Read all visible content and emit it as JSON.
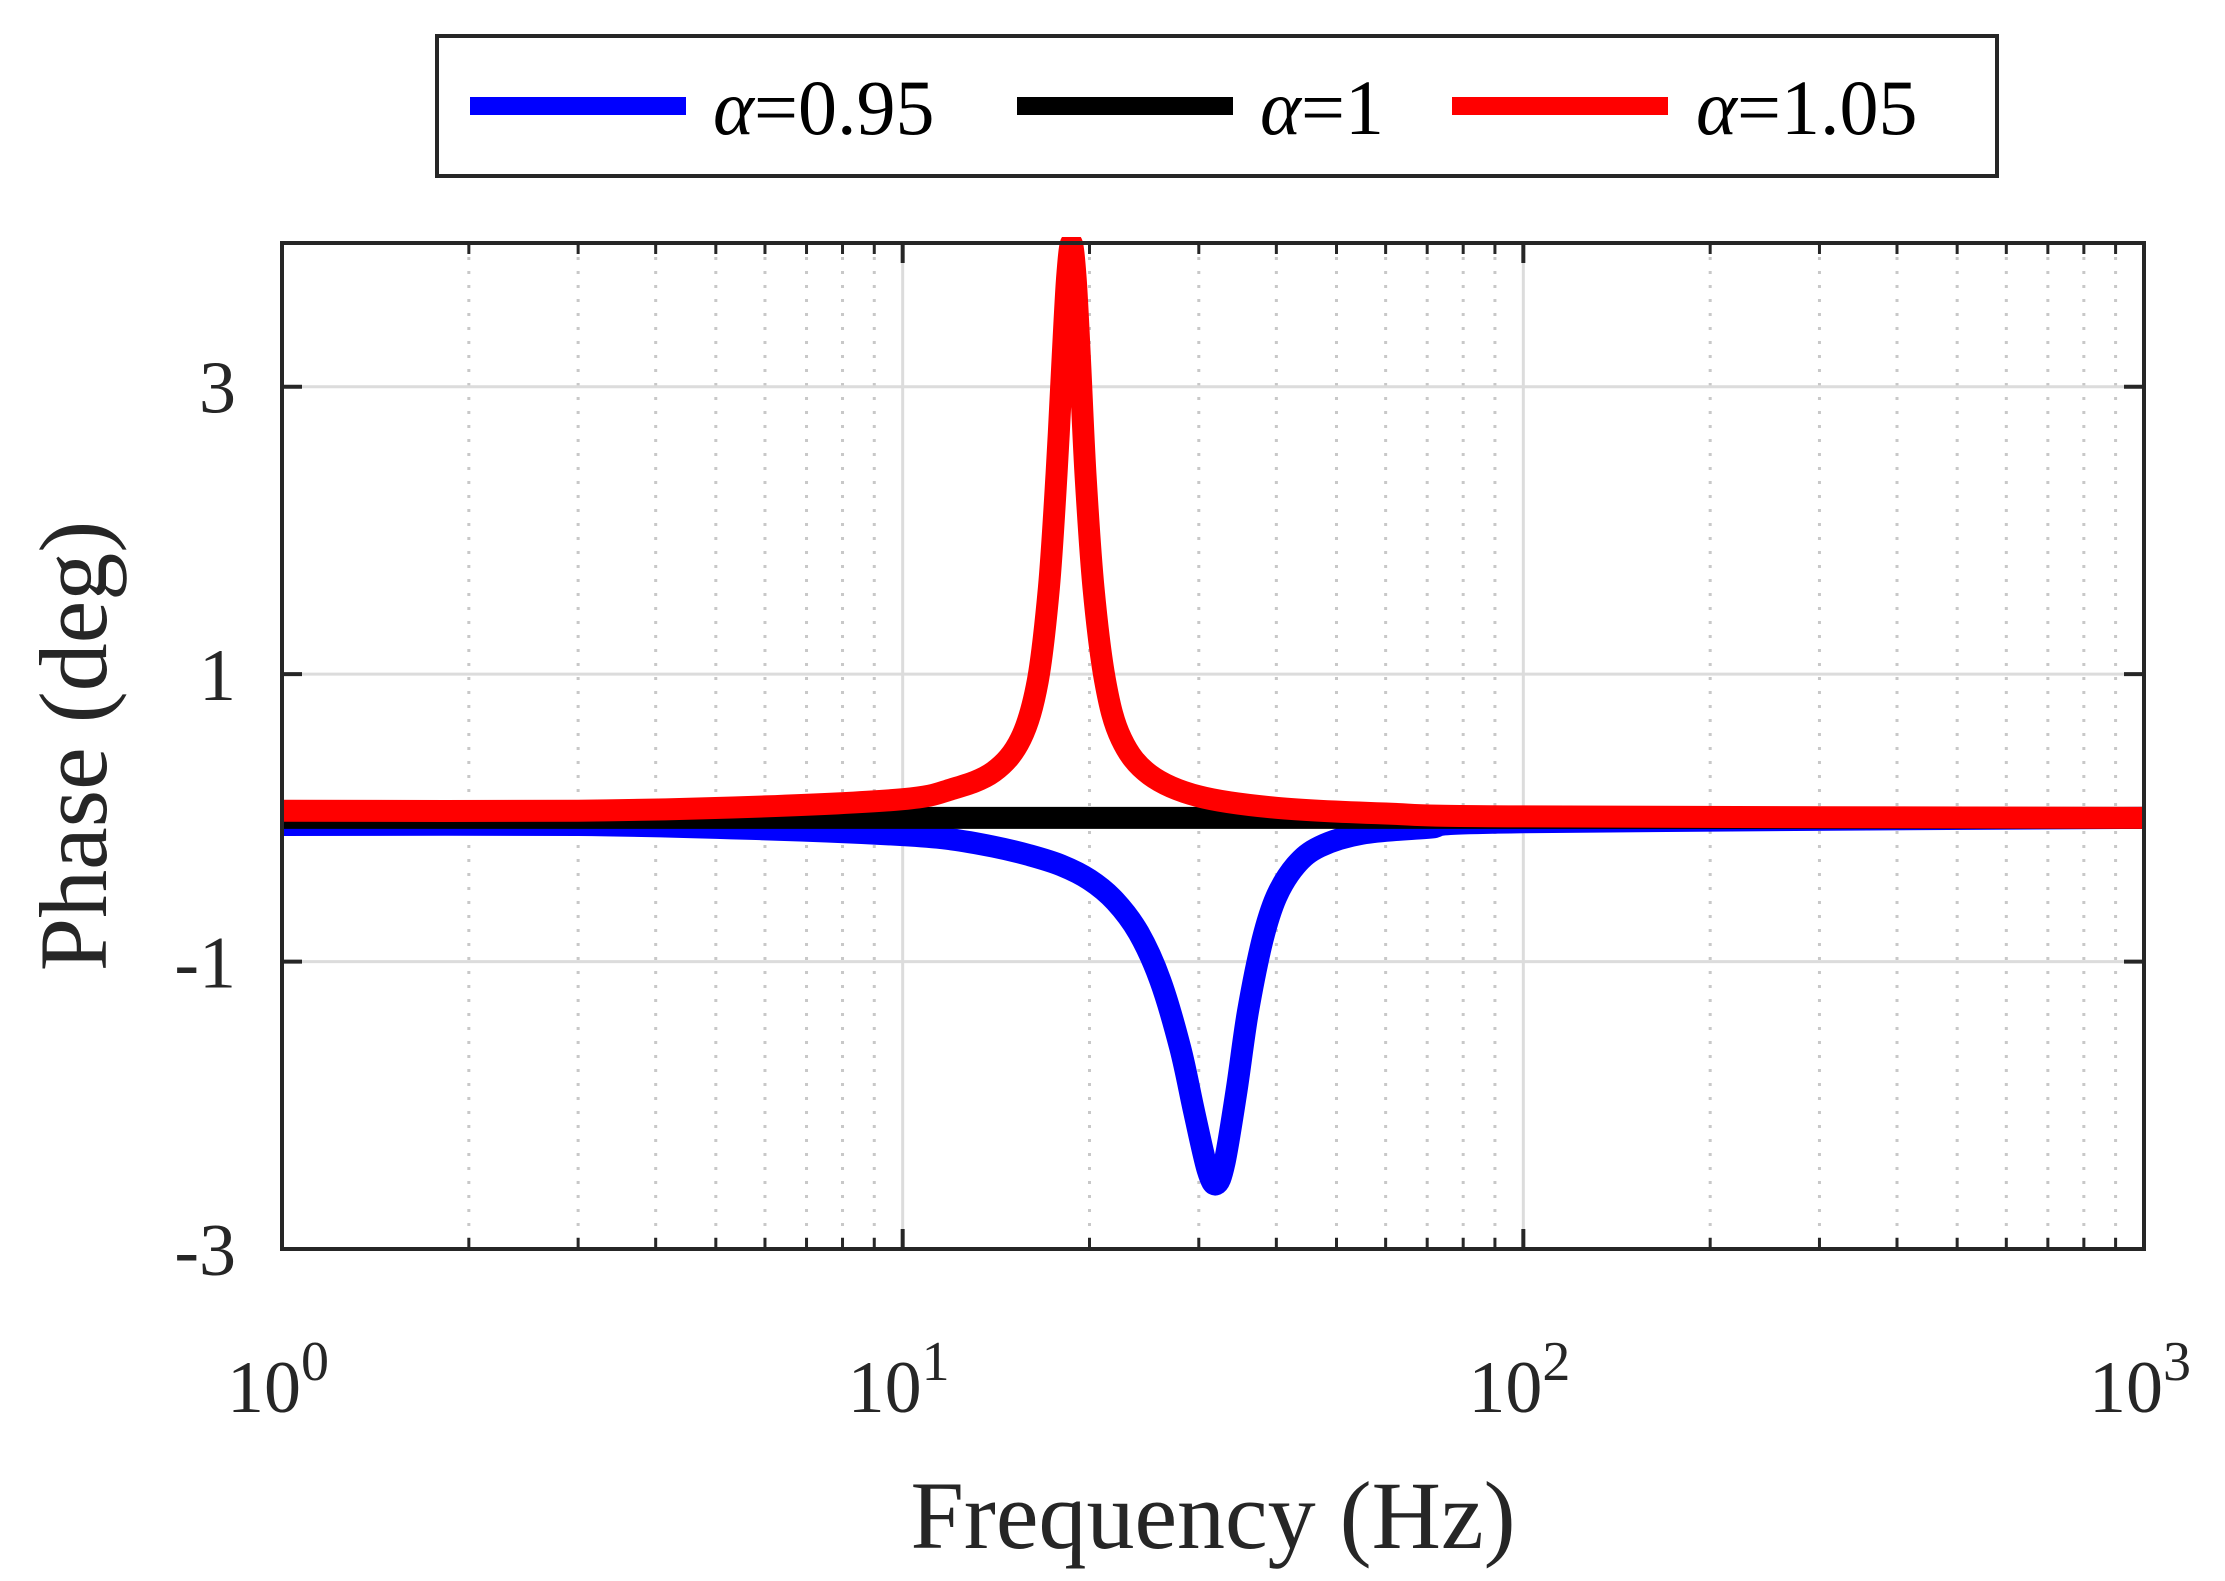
{
  "chart_data": {
    "type": "line",
    "xscale": "log",
    "xlabel": "Frequency (Hz)",
    "ylabel": "Phase (deg)",
    "xlim": [
      1,
      1000
    ],
    "ylim": [
      -3,
      4
    ],
    "grid": true,
    "legend_position": "top-center",
    "x_ticks": [
      {
        "value": 1,
        "base": "10",
        "exp": "0"
      },
      {
        "value": 10,
        "base": "10",
        "exp": "1"
      },
      {
        "value": 100,
        "base": "10",
        "exp": "2"
      },
      {
        "value": 1000,
        "base": "10",
        "exp": "3"
      }
    ],
    "y_ticks": [
      {
        "value": -3,
        "label": "-3"
      },
      {
        "value": -1,
        "label": "-1"
      },
      {
        "value": 1,
        "label": "1"
      },
      {
        "value": 3,
        "label": "3"
      }
    ],
    "series": [
      {
        "name": "α=0.95",
        "symbol": "α",
        "value_text": "=0.95",
        "color": "#0000ff",
        "points": [
          [
            1,
            -0.05
          ],
          [
            3,
            -0.05
          ],
          [
            6,
            -0.08
          ],
          [
            10,
            -0.12
          ],
          [
            12,
            -0.15
          ],
          [
            14,
            -0.2
          ],
          [
            16,
            -0.26
          ],
          [
            18,
            -0.33
          ],
          [
            20,
            -0.43
          ],
          [
            22,
            -0.58
          ],
          [
            24,
            -0.8
          ],
          [
            26,
            -1.13
          ],
          [
            28,
            -1.6
          ],
          [
            29.5,
            -2.05
          ],
          [
            31,
            -2.45
          ],
          [
            32,
            -2.55
          ],
          [
            33,
            -2.4
          ],
          [
            34.5,
            -1.9
          ],
          [
            36,
            -1.35
          ],
          [
            38,
            -0.85
          ],
          [
            40,
            -0.55
          ],
          [
            43,
            -0.33
          ],
          [
            47,
            -0.2
          ],
          [
            55,
            -0.11
          ],
          [
            70,
            -0.07
          ],
          [
            100,
            -0.03
          ],
          [
            1000,
            0.0
          ]
        ]
      },
      {
        "name": "α=1",
        "symbol": "α",
        "value_text": "=1",
        "color": "#000000",
        "points": [
          [
            1,
            0.0
          ],
          [
            1000,
            0.0
          ]
        ]
      },
      {
        "name": "α=1.05",
        "symbol": "α",
        "value_text": "=1.05",
        "color": "#ff0000",
        "points": [
          [
            1,
            0.05
          ],
          [
            3,
            0.05
          ],
          [
            6,
            0.08
          ],
          [
            10,
            0.13
          ],
          [
            12,
            0.2
          ],
          [
            14,
            0.32
          ],
          [
            15.5,
            0.55
          ],
          [
            16.5,
            0.95
          ],
          [
            17.2,
            1.6
          ],
          [
            17.7,
            2.4
          ],
          [
            18.1,
            3.2
          ],
          [
            18.4,
            3.75
          ],
          [
            18.7,
            4.0
          ],
          [
            19.0,
            3.75
          ],
          [
            19.3,
            3.2
          ],
          [
            19.7,
            2.4
          ],
          [
            20.3,
            1.6
          ],
          [
            21.2,
            0.95
          ],
          [
            22.5,
            0.55
          ],
          [
            25,
            0.3
          ],
          [
            30,
            0.15
          ],
          [
            40,
            0.07
          ],
          [
            60,
            0.03
          ],
          [
            100,
            0.01
          ],
          [
            1000,
            0.0
          ]
        ]
      }
    ]
  }
}
